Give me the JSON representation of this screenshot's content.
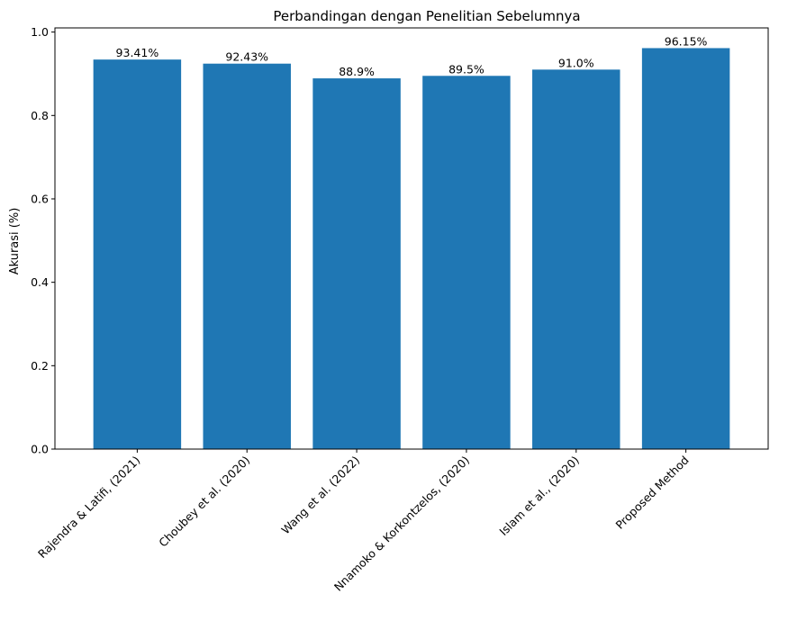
{
  "chart_data": {
    "type": "bar",
    "title": "Perbandingan dengan Penelitian Sebelumnya",
    "xlabel": "",
    "ylabel": "Akurasi (%)",
    "categories": [
      "Rajendra & Latifi, (2021)",
      "Choubey et al. (2020)",
      "Wang et al. (2022)",
      "Nnamoko & Korkontzelos, (2020)",
      "Islam et al., (2020)",
      "Proposed Method"
    ],
    "values": [
      0.9341,
      0.9243,
      0.889,
      0.895,
      0.91,
      0.9615
    ],
    "data_labels": [
      "93.41%",
      "92.43%",
      "88.9%",
      "89.5%",
      "91.0%",
      "96.15%"
    ],
    "ylim": [
      0,
      1.01
    ],
    "yticks": [
      0.0,
      0.2,
      0.4,
      0.6,
      0.8,
      1.0
    ],
    "ytick_labels": [
      "0.0",
      "0.2",
      "0.4",
      "0.6",
      "0.8",
      "1.0"
    ],
    "bar_color": "#1f77b4",
    "grid": false,
    "legend": "none"
  }
}
